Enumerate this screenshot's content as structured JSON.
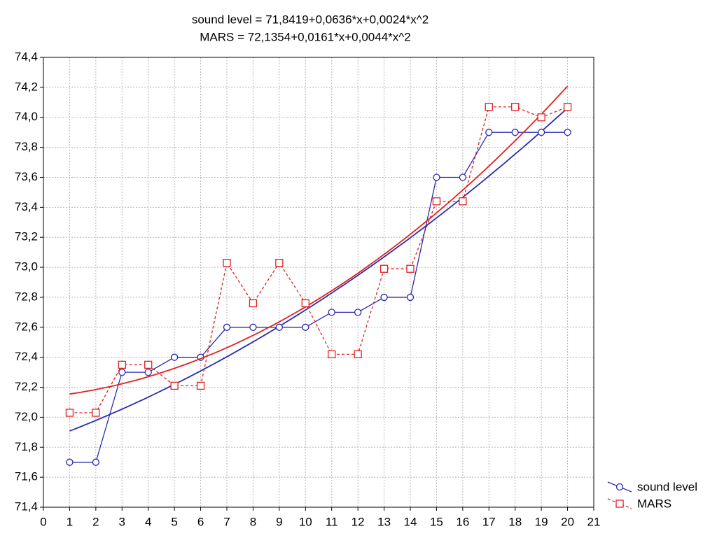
{
  "chart_data": {
    "type": "line",
    "title": [
      "sound level = 71,8419+0,0636*x+0,0024*x^2",
      "MARS = 72,1354+0,0161*x+0,0044*x^2"
    ],
    "x": [
      1,
      2,
      3,
      4,
      5,
      6,
      7,
      8,
      9,
      10,
      11,
      12,
      13,
      14,
      15,
      16,
      17,
      18,
      19,
      20
    ],
    "series": [
      {
        "name": "sound level",
        "color": "#2b2bb0",
        "marker": "circle",
        "dashed": false,
        "fit": "quadratic",
        "values": [
          71.7,
          71.7,
          72.3,
          72.3,
          72.4,
          72.4,
          72.6,
          72.6,
          72.6,
          72.6,
          72.7,
          72.7,
          72.8,
          72.8,
          73.6,
          73.6,
          73.9,
          73.9,
          73.9,
          73.9
        ]
      },
      {
        "name": "MARS",
        "color": "#e02020",
        "marker": "square",
        "dashed": true,
        "fit": "quadratic",
        "values": [
          72.03,
          72.03,
          72.35,
          72.35,
          72.21,
          72.21,
          73.03,
          72.76,
          73.03,
          72.76,
          72.42,
          72.42,
          72.99,
          72.99,
          73.44,
          73.44,
          74.07,
          74.07,
          74.0,
          74.07
        ]
      }
    ],
    "xlim": [
      0,
      21
    ],
    "xticks": [
      0,
      1,
      2,
      3,
      4,
      5,
      6,
      7,
      8,
      9,
      10,
      11,
      12,
      13,
      14,
      15,
      16,
      17,
      18,
      19,
      20,
      21
    ],
    "ylim": [
      71.4,
      74.4
    ],
    "yticks": [
      {
        "value": 71.4,
        "label": "71,4"
      },
      {
        "value": 71.6,
        "label": "71,6"
      },
      {
        "value": 71.8,
        "label": "71,8"
      },
      {
        "value": 72.0,
        "label": "72,0"
      },
      {
        "value": 72.2,
        "label": "72,2"
      },
      {
        "value": 72.4,
        "label": "72,4"
      },
      {
        "value": 72.6,
        "label": "72,6"
      },
      {
        "value": 72.8,
        "label": "72,8"
      },
      {
        "value": 73.0,
        "label": "73,0"
      },
      {
        "value": 73.2,
        "label": "73,2"
      },
      {
        "value": 73.4,
        "label": "73,4"
      },
      {
        "value": 73.6,
        "label": "73,6"
      },
      {
        "value": 73.8,
        "label": "73,8"
      },
      {
        "value": 74.0,
        "label": "74,0"
      },
      {
        "value": 74.2,
        "label": "74,2"
      },
      {
        "value": 74.4,
        "label": "74,4"
      }
    ],
    "grid": true,
    "legend": "bottom-right"
  }
}
